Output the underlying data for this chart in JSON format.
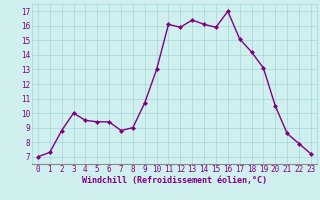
{
  "x": [
    0,
    1,
    2,
    3,
    4,
    5,
    6,
    7,
    8,
    9,
    10,
    11,
    12,
    13,
    14,
    15,
    16,
    17,
    18,
    19,
    20,
    21,
    22,
    23
  ],
  "y": [
    7.0,
    7.3,
    8.8,
    10.0,
    9.5,
    9.4,
    9.4,
    8.8,
    9.0,
    10.7,
    13.0,
    16.1,
    15.9,
    16.4,
    16.1,
    15.9,
    17.0,
    15.1,
    14.2,
    13.1,
    10.5,
    8.6,
    7.9,
    7.2
  ],
  "line_color": "#800080",
  "marker": "D",
  "marker_size": 2.0,
  "xlabel": "Windchill (Refroidissement éolien,°C)",
  "xlabel_fontsize": 6.0,
  "ylabel_ticks": [
    7,
    8,
    9,
    10,
    11,
    12,
    13,
    14,
    15,
    16,
    17
  ],
  "xlim": [
    -0.5,
    23.5
  ],
  "ylim": [
    6.5,
    17.5
  ],
  "bg_color": "#cff0ee",
  "grid_color": "#aadada",
  "tick_color": "#800080",
  "tick_fontsize": 5.5,
  "line_width": 1.0,
  "fig_width": 3.2,
  "fig_height": 2.0,
  "dpi": 100
}
